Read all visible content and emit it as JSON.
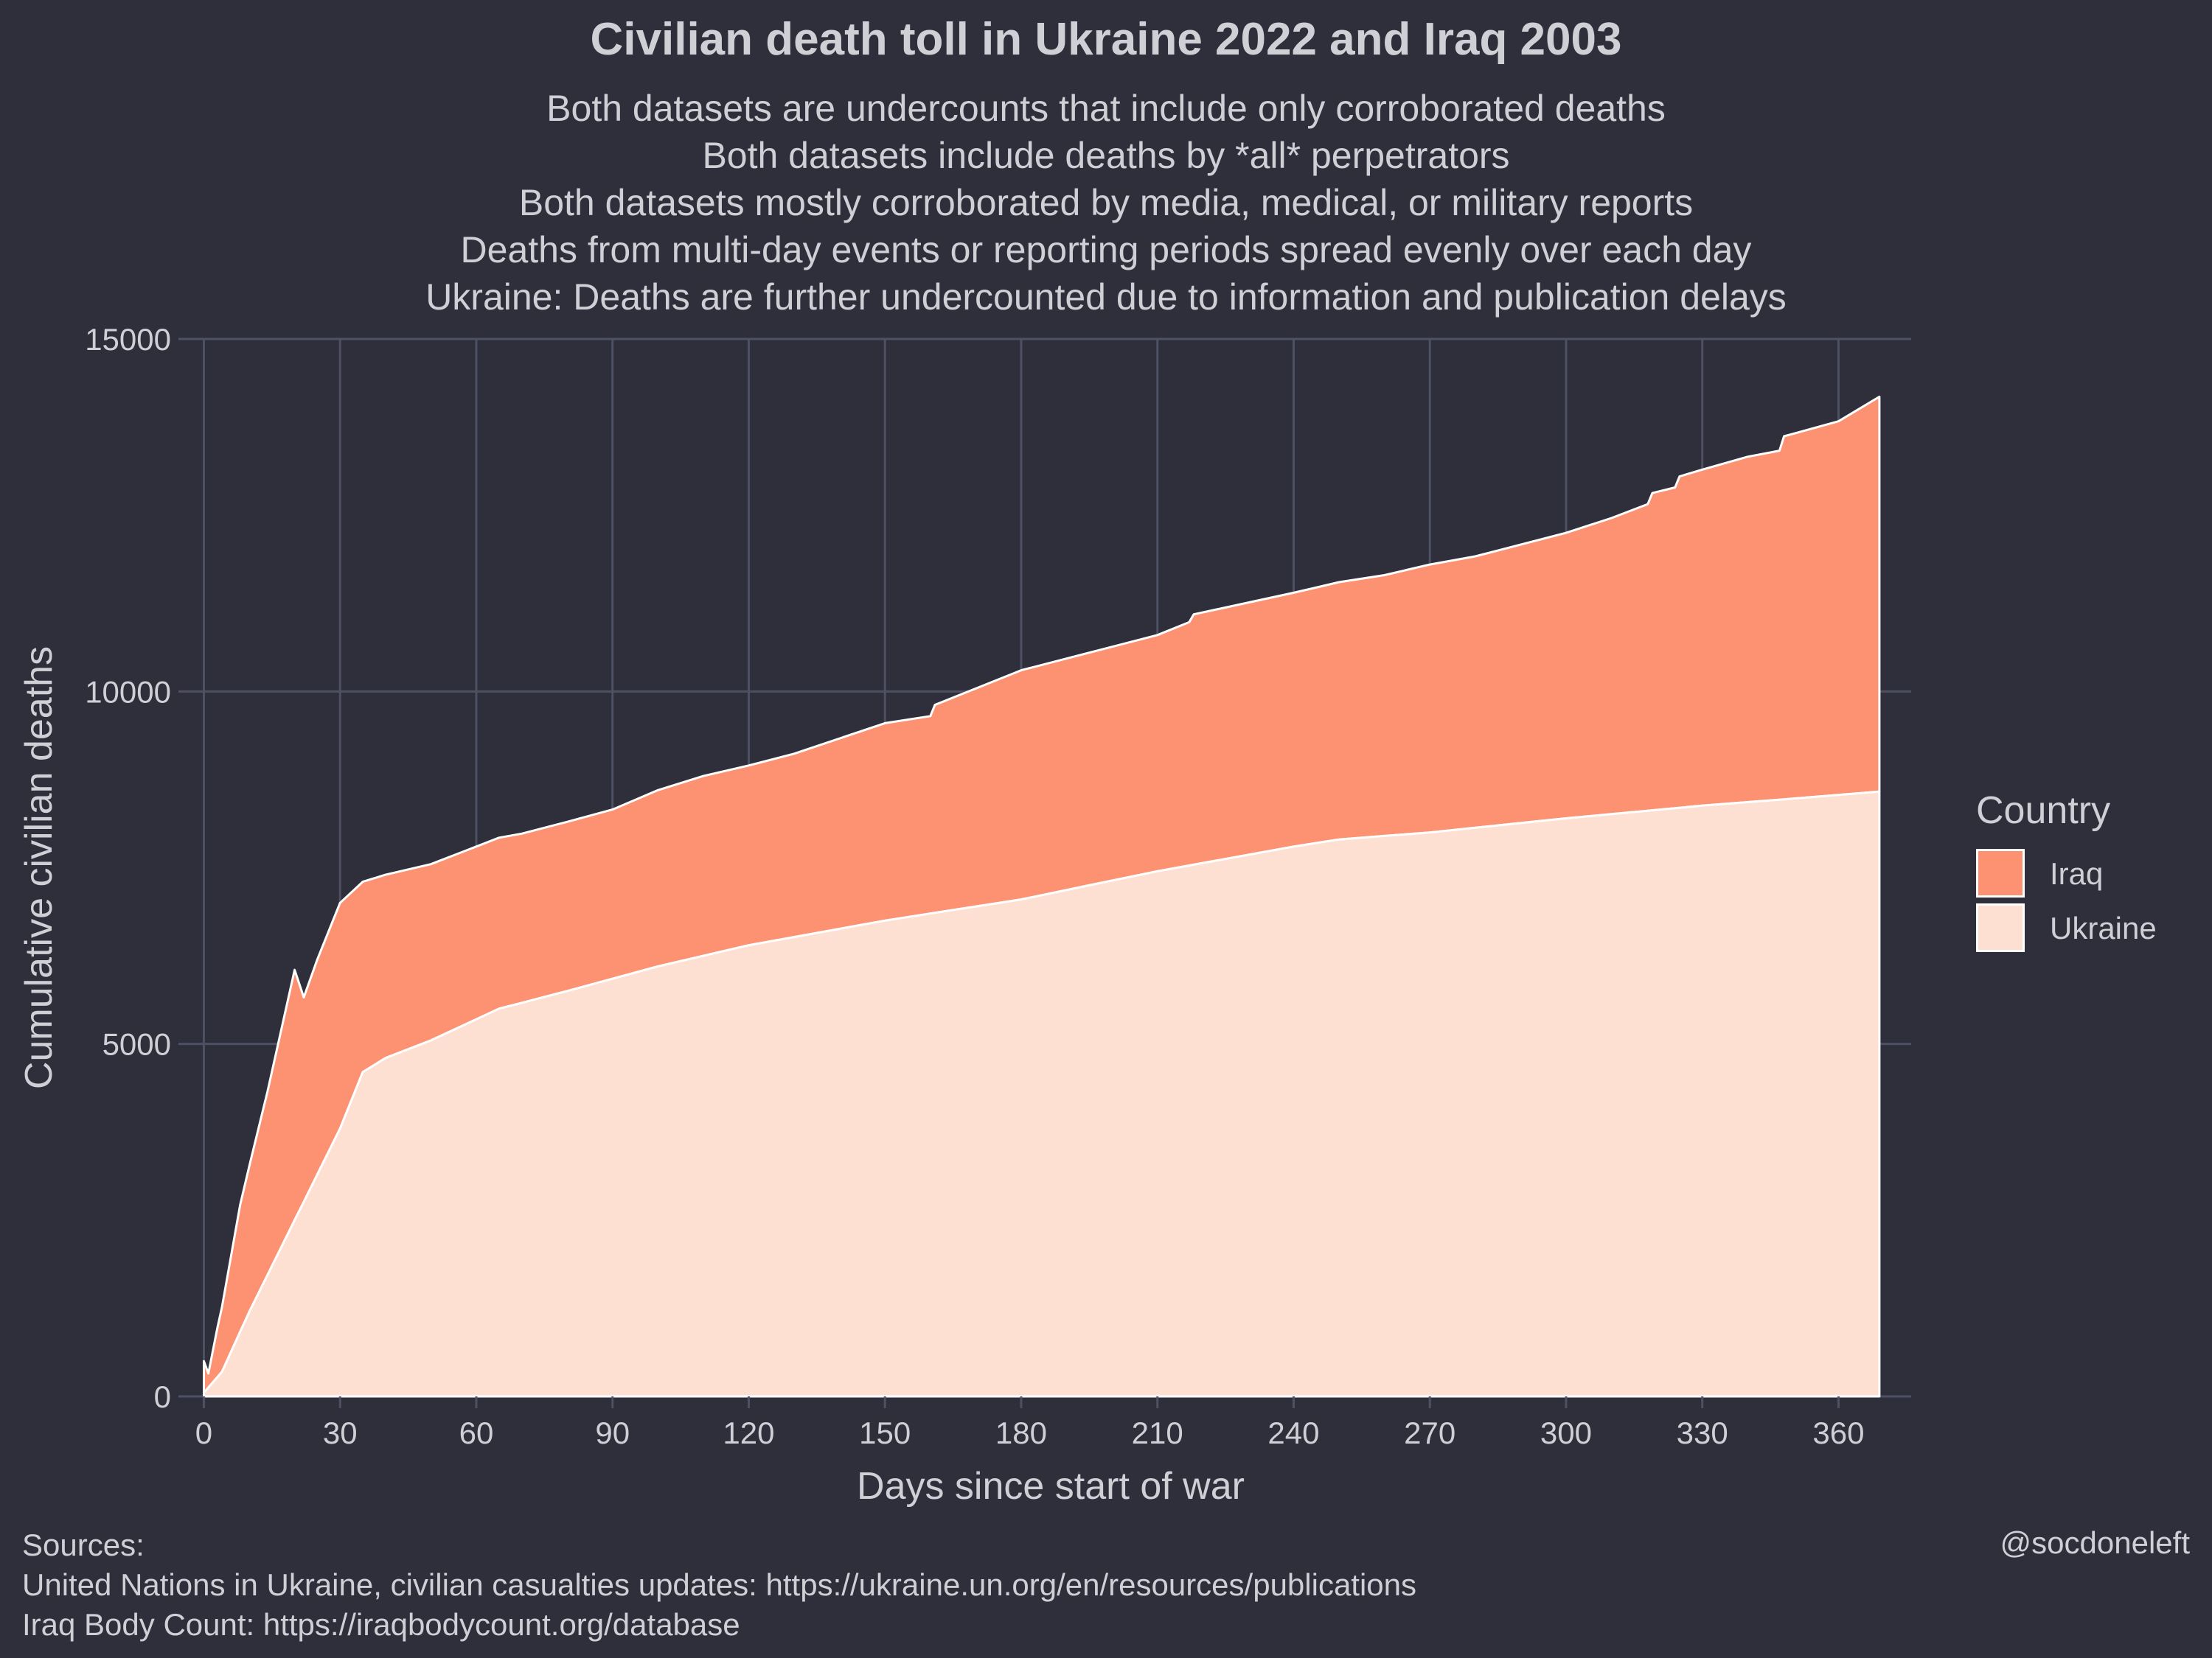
{
  "title": "Civilian death toll in Ukraine 2022 and Iraq 2003",
  "subtitle_lines": [
    "Both datasets are undercounts that include only corroborated deaths",
    "Both datasets include deaths by *all* perpetrators",
    "Both datasets mostly corroborated by media, medical, or military reports",
    "Deaths from multi-day events or reporting periods spread evenly over each day",
    "Ukraine: Deaths are further undercounted due to information and publication delays"
  ],
  "legend": {
    "title": "Country",
    "items": [
      {
        "label": "Iraq",
        "color": "#fc9272"
      },
      {
        "label": "Ukraine",
        "color": "#fee0d2"
      }
    ]
  },
  "sources": {
    "heading": "Sources:",
    "lines": [
      "United Nations in Ukraine, civilian casualties updates: https://ukraine.un.org/en/resources/publications",
      "Iraq Body Count: https://iraqbodycount.org/database"
    ]
  },
  "credit": "@socdoneleft",
  "colors": {
    "background": "#2e2f3a",
    "grid": "#4e5064",
    "text": "#cfcfd6",
    "outline": "#ffffff"
  },
  "chart_data": {
    "type": "area",
    "stacked": true,
    "xlabel": "Days since start of war",
    "ylabel": "Cumulative civilian deaths",
    "xlim": [
      -3,
      376
    ],
    "ylim": [
      0,
      15000
    ],
    "xticks": [
      0,
      30,
      60,
      90,
      120,
      150,
      180,
      210,
      240,
      270,
      300,
      330,
      360
    ],
    "yticks": [
      0,
      5000,
      10000,
      15000
    ],
    "grid": true,
    "legend_position": "right",
    "series": [
      {
        "name": "Ukraine",
        "color": "#fee0d2",
        "x": [
          0,
          4,
          10,
          20,
          30,
          35,
          40,
          50,
          60,
          65,
          80,
          100,
          120,
          150,
          180,
          210,
          240,
          250,
          270,
          300,
          330,
          350,
          369
        ],
        "values": [
          50,
          350,
          1200,
          2500,
          3800,
          4600,
          4800,
          5050,
          5350,
          5500,
          5750,
          6100,
          6400,
          6750,
          7050,
          7450,
          7800,
          7900,
          8000,
          8200,
          8380,
          8480,
          8580
        ]
      },
      {
        "name": "Iraq",
        "color": "#fc9272",
        "x": [
          0,
          1,
          3,
          8,
          14,
          20,
          22,
          25,
          30,
          35,
          40,
          50,
          60,
          70,
          80,
          90,
          100,
          110,
          120,
          130,
          150,
          160,
          161,
          180,
          195,
          210,
          217,
          218,
          240,
          260,
          270,
          280,
          300,
          310,
          318,
          319,
          324,
          325,
          340,
          347,
          348,
          360,
          369
        ],
        "values": [
          450,
          200,
          700,
          1800,
          2600,
          3550,
          2900,
          3050,
          3200,
          2700,
          2600,
          2500,
          2450,
          2400,
          2400,
          2400,
          2500,
          2550,
          2550,
          2600,
          2800,
          2800,
          2950,
          3250,
          3300,
          3350,
          3450,
          3550,
          3600,
          3700,
          3800,
          3850,
          4050,
          4200,
          4350,
          4500,
          4550,
          4700,
          4900,
          4950,
          5150,
          5300,
          5600
        ]
      }
    ]
  }
}
